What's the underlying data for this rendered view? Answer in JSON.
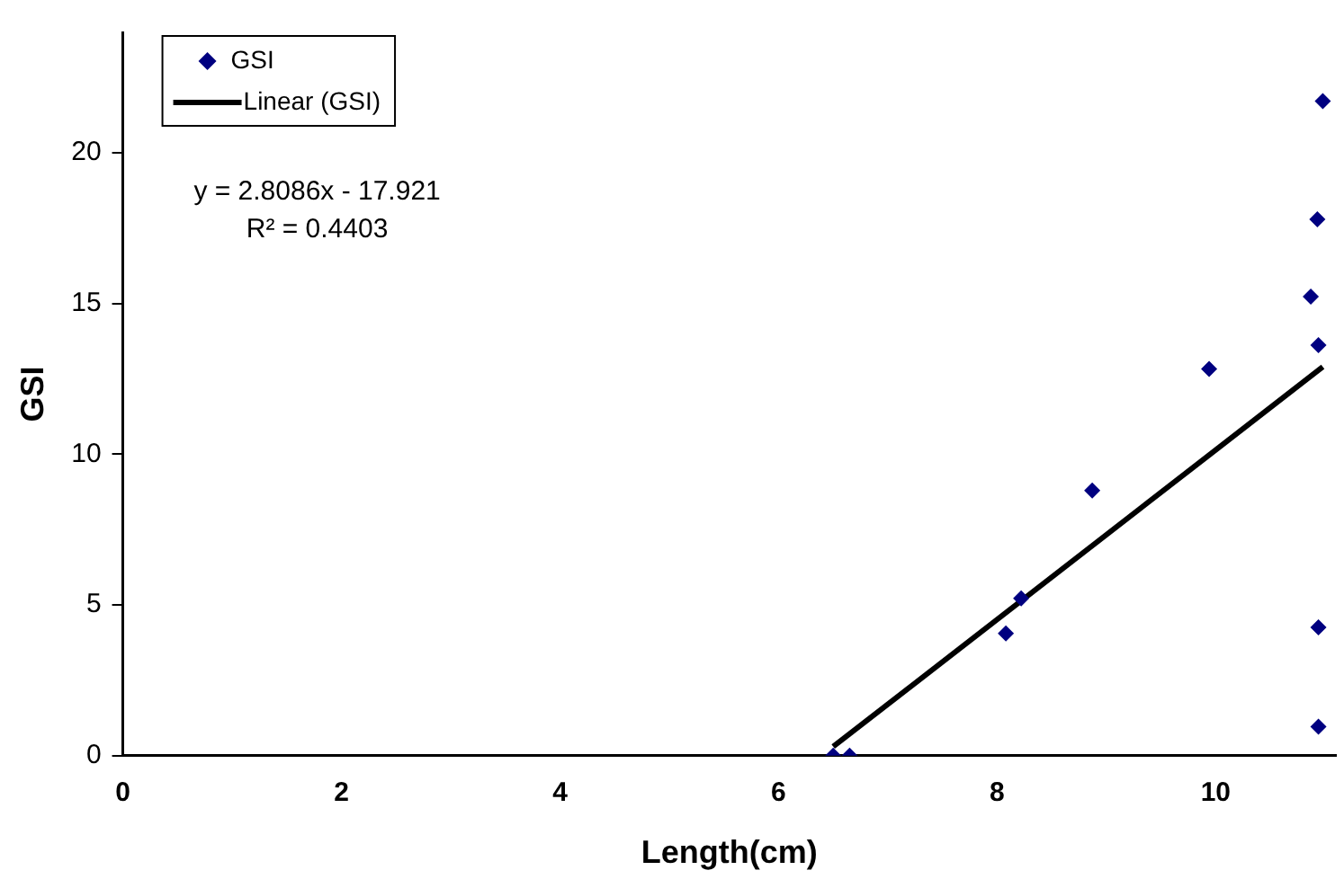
{
  "chart_data": {
    "type": "scatter",
    "xlabel": "Length(cm)",
    "ylabel": "GSI",
    "xlim": [
      0,
      11.1
    ],
    "xticks": [
      0,
      2,
      4,
      6,
      8,
      10
    ],
    "ylim": [
      0,
      24
    ],
    "yticks": [
      0,
      5,
      10,
      15,
      20
    ],
    "grid": false,
    "legend": "top left",
    "marker": "diamond",
    "annotations": [
      "y = 2.8086x - 17.921",
      "R² = 0.4403"
    ],
    "series": [
      {
        "name": "GSI",
        "color": "#000080",
        "x": [
          6.5,
          6.65,
          8.08,
          8.22,
          8.87,
          9.94,
          10.87,
          10.94,
          10.93,
          10.98,
          10.94,
          10.94
        ],
        "values": [
          0,
          0,
          4.06,
          5.22,
          8.8,
          12.83,
          15.23,
          13.62,
          17.8,
          21.72,
          4.26,
          0.96
        ]
      },
      {
        "name": "Linear (GSI)",
        "type": "line",
        "color": "#000000",
        "line_style": "solid",
        "marker": "none",
        "x": [
          6.5,
          10.98
        ],
        "values": [
          0.3,
          12.9
        ]
      }
    ]
  }
}
